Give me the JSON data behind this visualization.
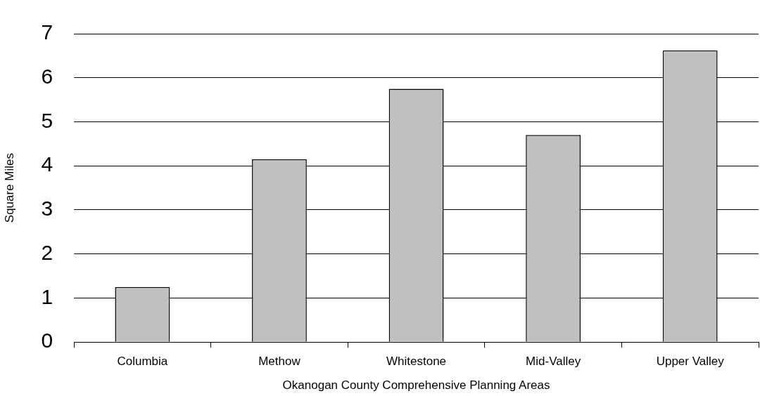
{
  "chart_data": {
    "type": "bar",
    "xlabel": "Okanogan County Comprehensive Planning Areas",
    "ylabel": "Square Miles",
    "categories": [
      "Columbia",
      "Methow",
      "Whitestone",
      "Mid-Valley",
      "Upper Valley"
    ],
    "series": [
      {
        "color": "#c0c0c0",
        "values": [
          1.25,
          4.15,
          5.75,
          4.7,
          6.62
        ]
      }
    ],
    "ylim": [
      0,
      7
    ],
    "yticks": [
      0,
      1,
      2,
      3,
      4,
      5,
      6,
      7
    ],
    "grid": "y",
    "legend": false
  }
}
